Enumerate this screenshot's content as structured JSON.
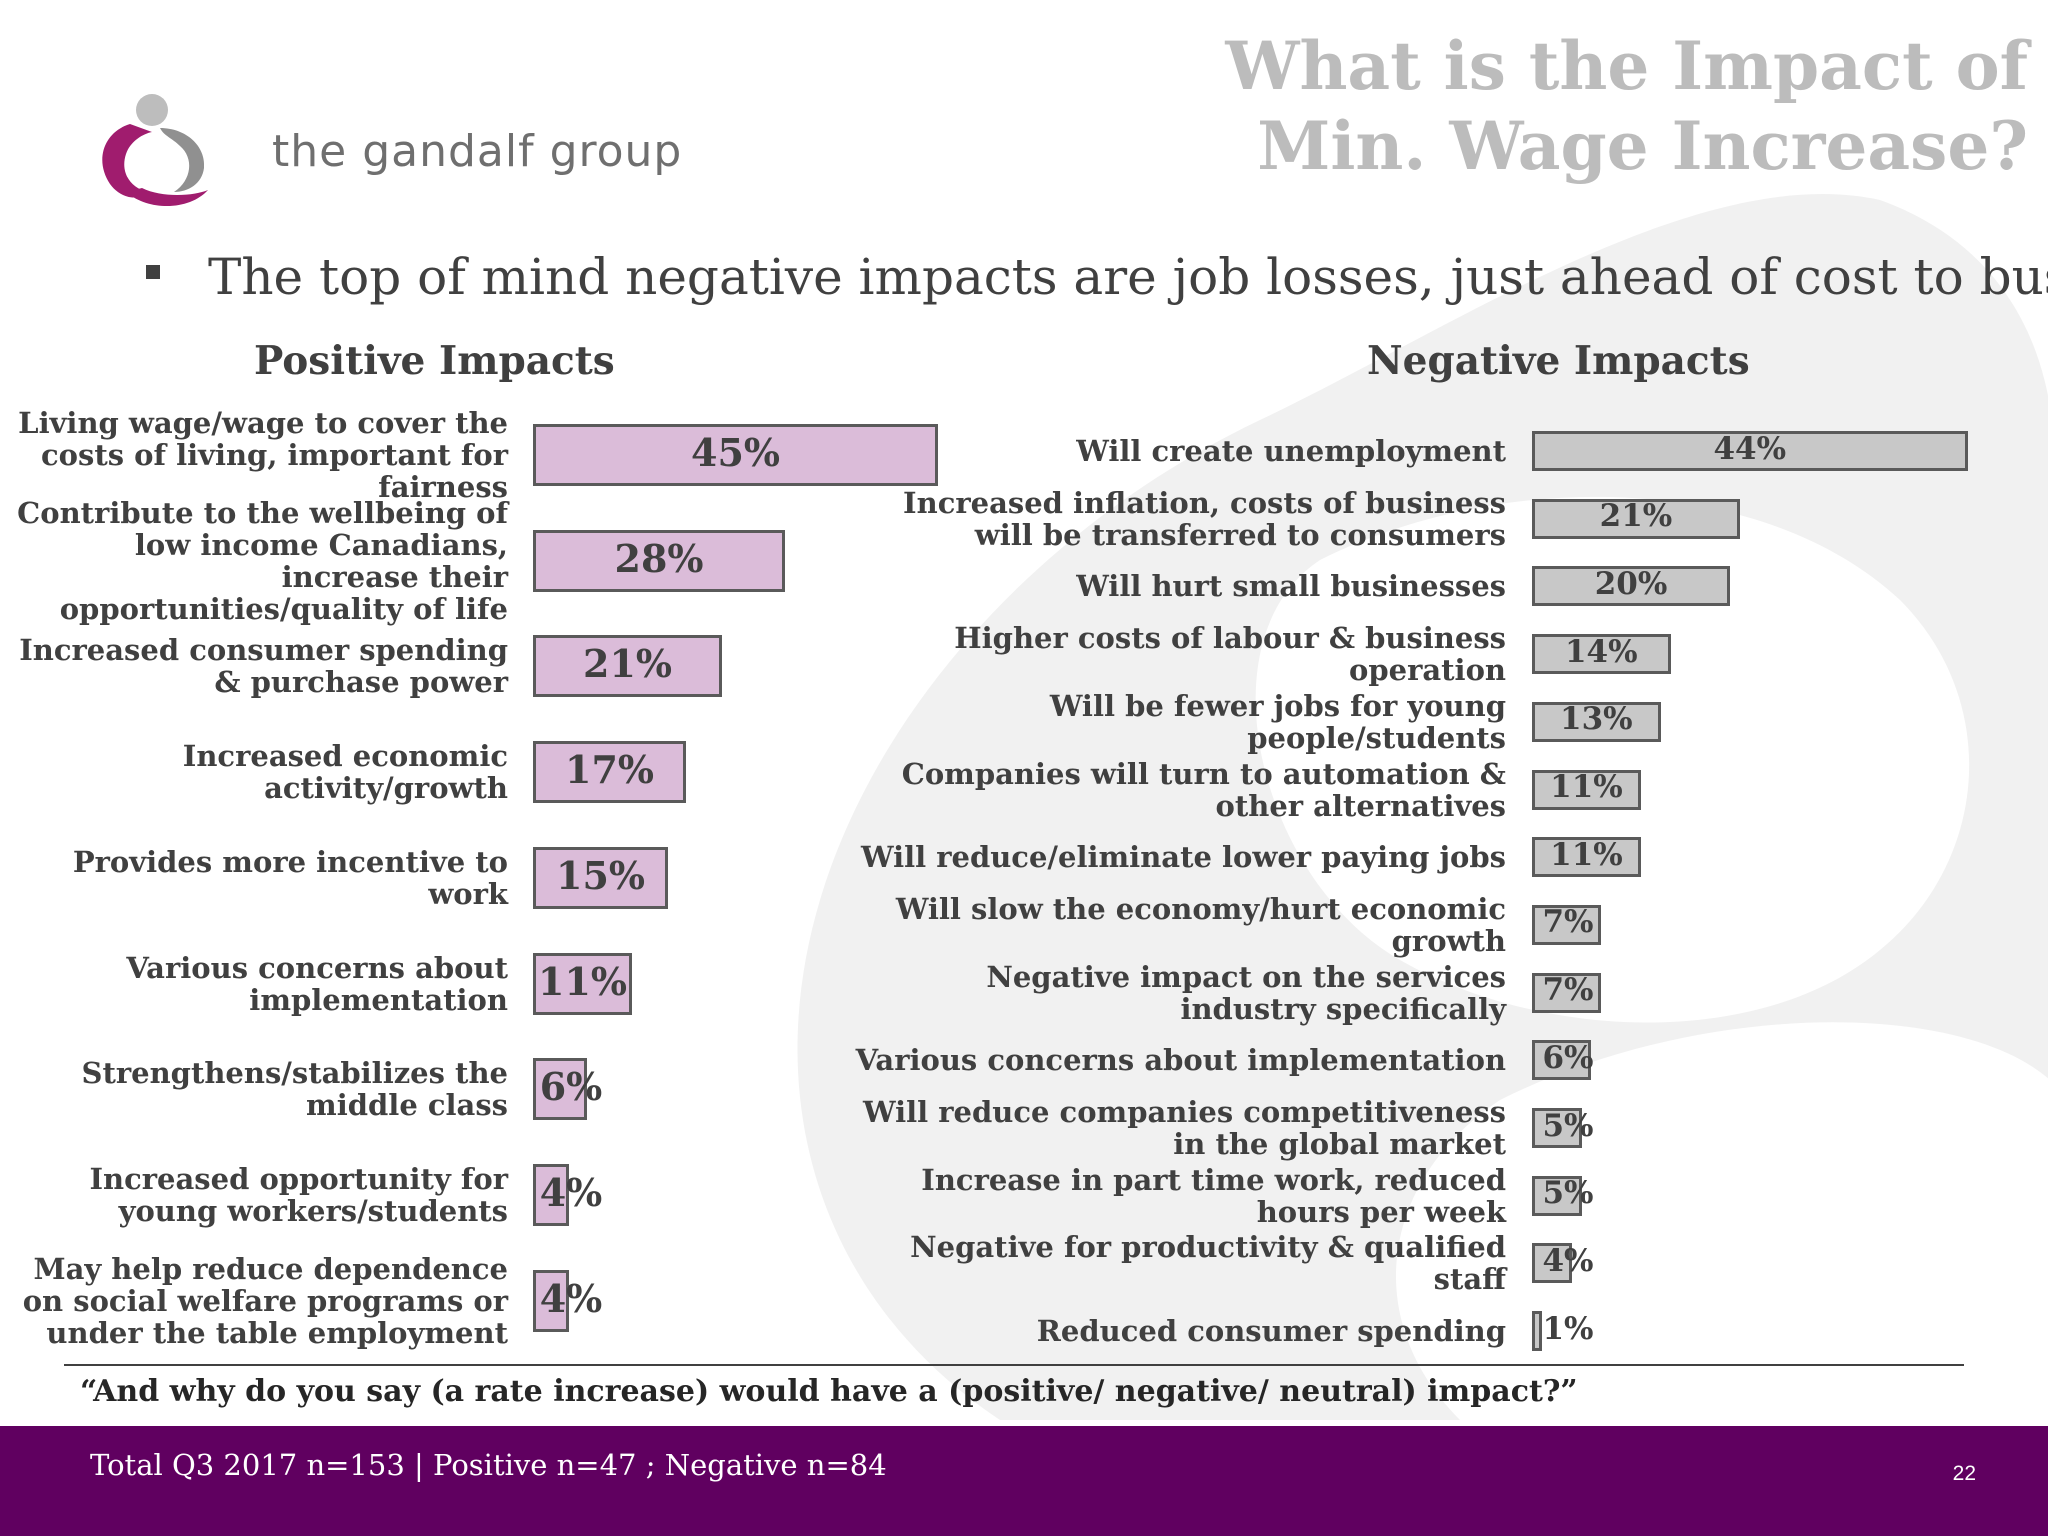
{
  "header": {
    "logo_text": "the gandalf group",
    "title_line1": "What is the Impact of",
    "title_line2": "Min. Wage Increase?"
  },
  "bullet": "The top of mind negative impacts are job losses, just ahead of cost to business.",
  "colors": {
    "positive_bar": "#dbbcd9",
    "negative_bar": "#c8c8c8",
    "bar_border": "#5a5a5a",
    "footer_bg": "#600060",
    "logo_purple": "#a01c6e"
  },
  "chart_data": [
    {
      "type": "bar",
      "orientation": "horizontal",
      "title": "Positive Impacts",
      "categories": [
        "Living wage/wage to cover the costs of living, important for fairness",
        "Contribute to the wellbeing of low income Canadians, increase their opportunities/quality of life",
        "Increased consumer spending & purchase power",
        "Increased economic activity/growth",
        "Provides more incentive to work",
        "Various concerns about implementation",
        "Strengthens/stabilizes the middle class",
        "Increased opportunity for young workers/students",
        "May help reduce dependence on social welfare programs or under the table employment"
      ],
      "values": [
        45,
        28,
        21,
        17,
        15,
        11,
        6,
        4,
        4
      ],
      "value_labels": [
        "45%",
        "28%",
        "21%",
        "17%",
        "15%",
        "11%",
        "6%",
        "4%",
        "4%"
      ],
      "unit": "%",
      "grid": false
    },
    {
      "type": "bar",
      "orientation": "horizontal",
      "title": "Negative Impacts",
      "categories": [
        "Will create unemployment",
        "Increased inflation, costs of business will be transferred to consumers",
        "Will hurt small businesses",
        "Higher costs of labour & business operation",
        "Will be fewer jobs for young people/students",
        "Companies will turn to automation & other alternatives",
        "Will reduce/eliminate lower paying jobs",
        "Will slow the economy/hurt economic growth",
        "Negative impact on the services industry specifically",
        "Various concerns about implementation",
        "Will reduce companies competitiveness in the global market",
        "Increase in part time work, reduced hours per week",
        "Negative for productivity & qualified staff",
        "Reduced consumer spending"
      ],
      "values": [
        44,
        21,
        20,
        14,
        13,
        11,
        11,
        7,
        7,
        6,
        5,
        5,
        4,
        1
      ],
      "value_labels": [
        "44%",
        "21%",
        "20%",
        "14%",
        "13%",
        "11%",
        "11%",
        "7%",
        "7%",
        "6%",
        "5%",
        "5%",
        "4%",
        "1%"
      ],
      "unit": "%",
      "grid": false
    }
  ],
  "question": "“And why do you say (a rate increase) would have a (positive/ negative/ neutral) impact?”",
  "footer": {
    "sample": "Total Q3 2017 n=153 | Positive n=47 ; Negative n=84",
    "page_number": "22"
  }
}
